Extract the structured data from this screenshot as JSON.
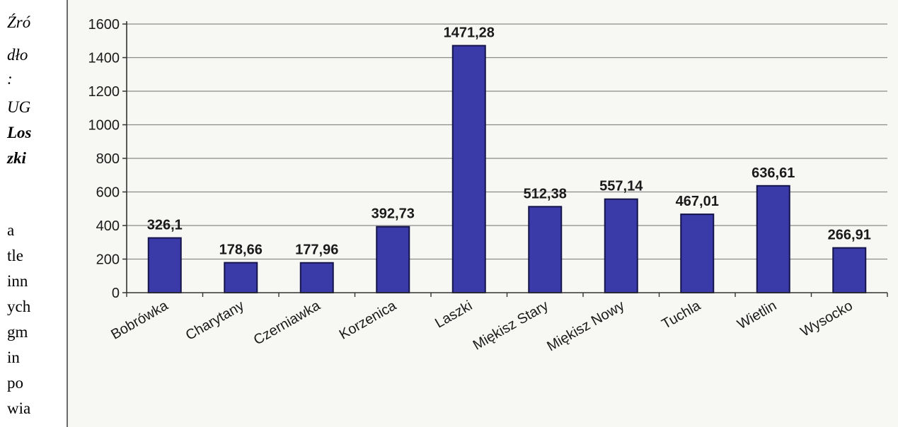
{
  "side_text": {
    "lines": [
      "Źró",
      "dło",
      ":",
      "UG",
      "Los",
      "zki",
      "a",
      "tle",
      "inn",
      "ych",
      "gm",
      "in",
      "po",
      "wia"
    ]
  },
  "chart_data": {
    "type": "bar",
    "title": "",
    "xlabel": "",
    "ylabel": "",
    "categories": [
      "Bobrówka",
      "Charytany",
      "Czerniawka",
      "Korzenica",
      "Laszki",
      "Miękisz Stary",
      "Miękisz Nowy",
      "Tuchla",
      "Wietlin",
      "Wysocko"
    ],
    "values": [
      326.1,
      178.66,
      177.96,
      392.73,
      1471.28,
      512.38,
      557.14,
      467.01,
      636.61,
      266.91
    ],
    "data_labels": [
      "326,1",
      "178,66",
      "177,96",
      "392,73",
      "1471,28",
      "512,38",
      "557,14",
      "467,01",
      "636,61",
      "266,91"
    ],
    "y_ticks": [
      0,
      200,
      400,
      600,
      800,
      1000,
      1200,
      1400,
      1600
    ],
    "ylim": [
      0,
      1600
    ],
    "grid": true,
    "legend": "none",
    "bar_color": "#3a3aa8",
    "bar_edge_color": "#14144a"
  }
}
